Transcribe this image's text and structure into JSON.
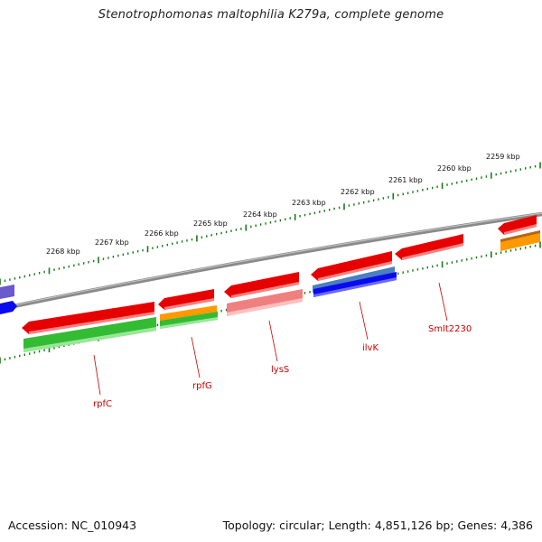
{
  "title": "Stenotrophomonas maltophilia K279a, complete genome",
  "accession": "Accession: NC_010943",
  "summary": "Topology: circular; Length: 4,851,126 bp; Genes: 4,386",
  "colors": {
    "backbone": "#8a8a8a",
    "ticks": "#1a7a1a",
    "gene_red": "#e60000",
    "gene_light_red": "#f08080",
    "gene_green": "#33bb33",
    "gene_orange": "#ff9900",
    "gene_blue": "#0a0aee",
    "gene_steel": "#4a7fc0",
    "gene_purple": "#6a5acd",
    "label": "#cc0000"
  },
  "kbp_labels": [
    "2268 kbp",
    "2267 kbp",
    "2266 kbp",
    "2265 kbp",
    "2264 kbp",
    "2263 kbp",
    "2262 kbp",
    "2261 kbp",
    "2260 kbp",
    "2259 kbp"
  ],
  "gene_labels": [
    "rpfC",
    "rpfG",
    "lysS",
    "ilvK",
    "Smlt2230"
  ]
}
